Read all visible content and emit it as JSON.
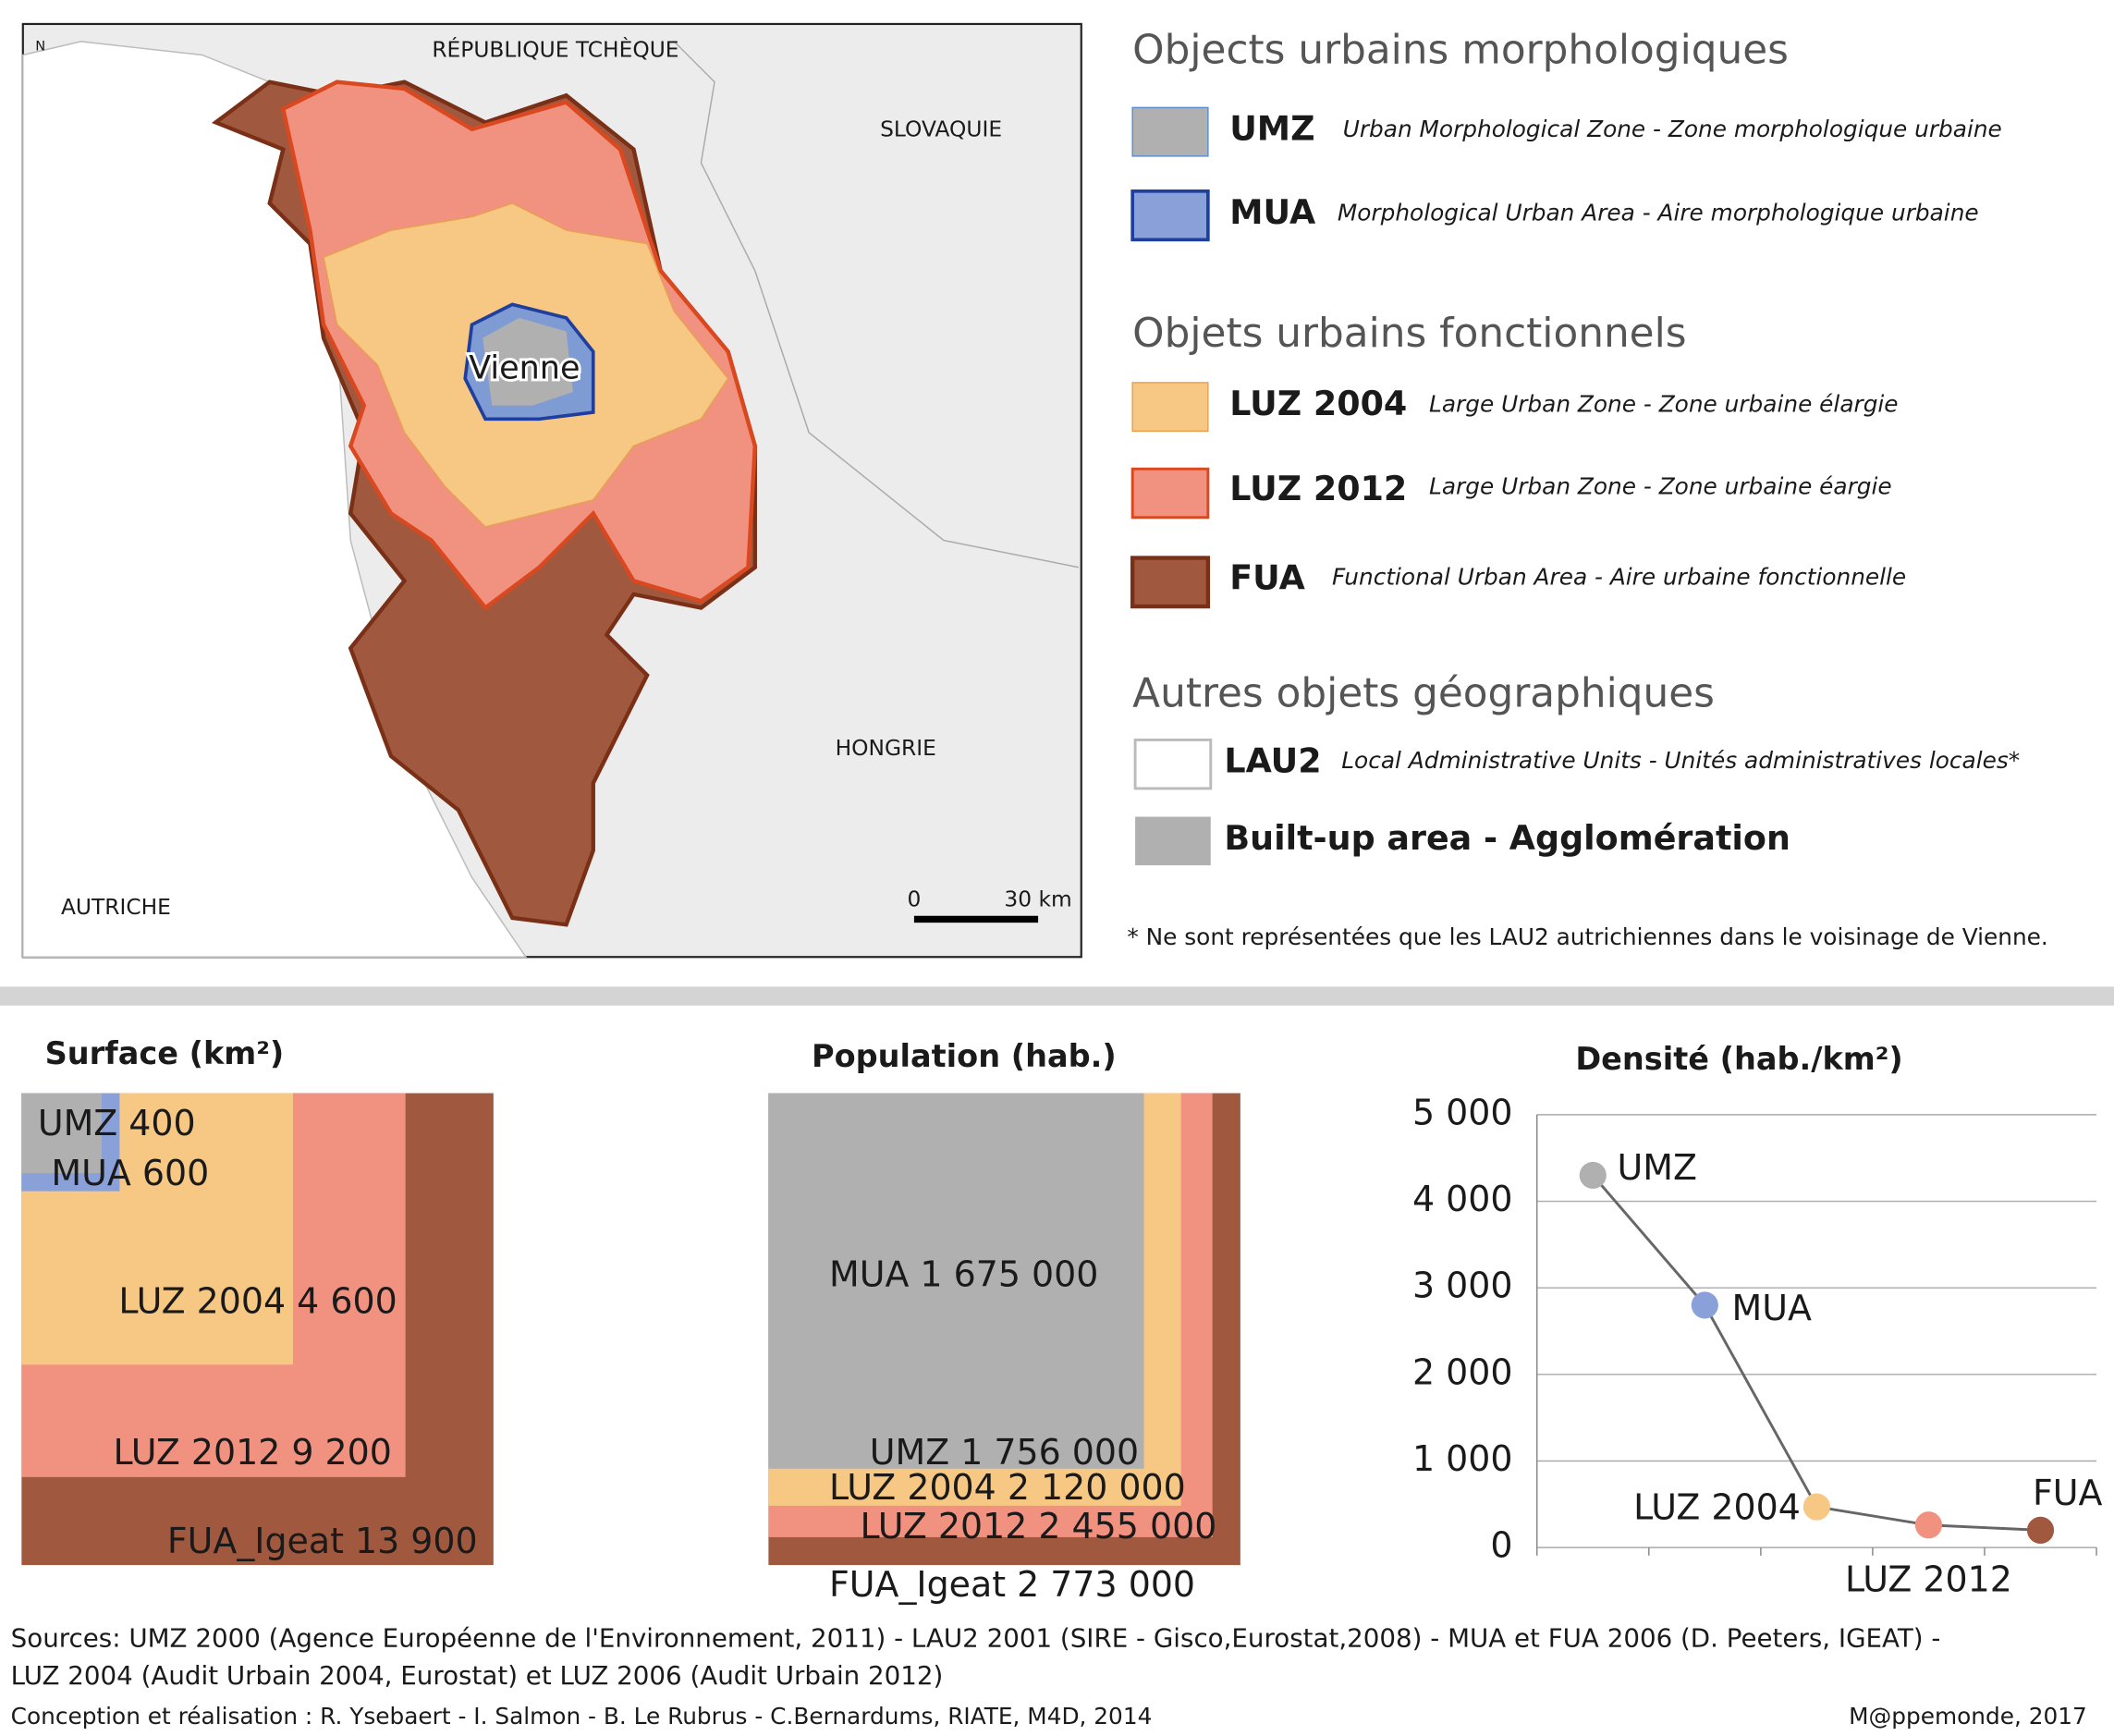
{
  "map": {
    "labels": [
      "RÉPUBLIQUE TCHÈQUE",
      "SLOVAQUIE",
      "HONGRIE",
      "AUTRICHE"
    ],
    "city": "Vienne",
    "north": "N",
    "scale": [
      "0",
      "30 km"
    ]
  },
  "legend": {
    "sections": [
      {
        "title": "Objects urbains morphologiques",
        "items": [
          {
            "code": "UMZ",
            "description": "Urban Morphological Zone - Zone morphologique urbaine"
          },
          {
            "code": "MUA",
            "description": "Morphological Urban Area - Aire morphologique urbaine"
          }
        ]
      },
      {
        "title": "Objets urbains fonctionnels",
        "items": [
          {
            "code": "LUZ 2004",
            "description": "Large Urban Zone - Zone urbaine élargie"
          },
          {
            "code": "LUZ 2012",
            "description": "Large Urban Zone - Zone urbaine éargie"
          },
          {
            "code": "FUA",
            "description": "Functional Urban Area - Aire urbaine fonctionnelle"
          }
        ]
      },
      {
        "title": "Autres objets géographiques",
        "items": [
          {
            "code": "LAU2",
            "description": "Local Administrative Units - Unités administratives locales*"
          },
          {
            "code": "Built-up area - Agglomération"
          }
        ]
      }
    ],
    "footnote": "* Ne sont représentées que les LAU2 autrichiennes dans le voisinage de Vienne."
  },
  "chart_data": [
    {
      "type": "nested-squares",
      "title": "Surface (km²)",
      "categories": [
        "UMZ",
        "MUA",
        "LUZ 2004",
        "LUZ 2012",
        "FUA_Igeat"
      ],
      "values": [
        400,
        600,
        4600,
        9200,
        13900
      ],
      "value_labels": [
        "UMZ 400",
        "MUA 600",
        "LUZ 2004 4 600",
        "LUZ 2012 9 200",
        "FUA_Igeat 13 900"
      ],
      "colors": [
        "#b0b0b0",
        "#8aa0d8",
        "#f7c784",
        "#f1917f",
        "#a0593f"
      ]
    },
    {
      "type": "nested-squares",
      "title": "Population (hab.)",
      "categories": [
        "MUA",
        "UMZ",
        "LUZ 2004",
        "LUZ 2012",
        "FUA_Igeat"
      ],
      "values": [
        1675000,
        1756000,
        2120000,
        2455000,
        2773000
      ],
      "value_labels": [
        "MUA 1 675 000",
        "UMZ 1 756 000",
        "LUZ 2004 2 120 000",
        "LUZ 2012 2 455 000",
        "FUA_Igeat 2 773 000"
      ],
      "colors": [
        "#b0b0b0",
        "#b0b0b0",
        "#f7c784",
        "#f1917f",
        "#a0593f"
      ]
    },
    {
      "type": "line",
      "title": "Densité (hab./km²)",
      "categories": [
        "UMZ",
        "MUA",
        "LUZ 2004",
        "LUZ 2012",
        "FUA"
      ],
      "values": [
        4300,
        2800,
        470,
        260,
        200
      ],
      "colors": [
        "#b0b0b0",
        "#8aa0d8",
        "#f7c784",
        "#f1917f",
        "#a0593f"
      ],
      "line_color": "#666666",
      "ylim": [
        0,
        5000
      ],
      "yticks": [
        0,
        {
          "value": 1000,
          "label": "1 000"
        },
        {
          "value": 2000,
          "label": "2 000"
        },
        {
          "value": 3000,
          "label": "3 000"
        },
        {
          "value": 4000,
          "label": "4 000"
        },
        {
          "value": 5000,
          "label": "5 000"
        }
      ],
      "grid": true
    }
  ],
  "footer": {
    "sources": [
      "Sources: UMZ 2000 (Agence Européenne de l'Environnement, 2011) -  LAU2 2001 (SIRE - Gisco,Eurostat,2008) - MUA et FUA 2006 (D. Peeters, IGEAT) -",
      "LUZ 2004 (Audit Urbain 2004, Eurostat) et LUZ 2006 (Audit Urbain 2012)"
    ],
    "credit": "Conception et réalisation : R. Ysebaert - I. Salmon - B. Le Rubrus - C.Bernardums, RIATE, M4D, 2014",
    "copyright": "M@ppemonde, 2017"
  }
}
